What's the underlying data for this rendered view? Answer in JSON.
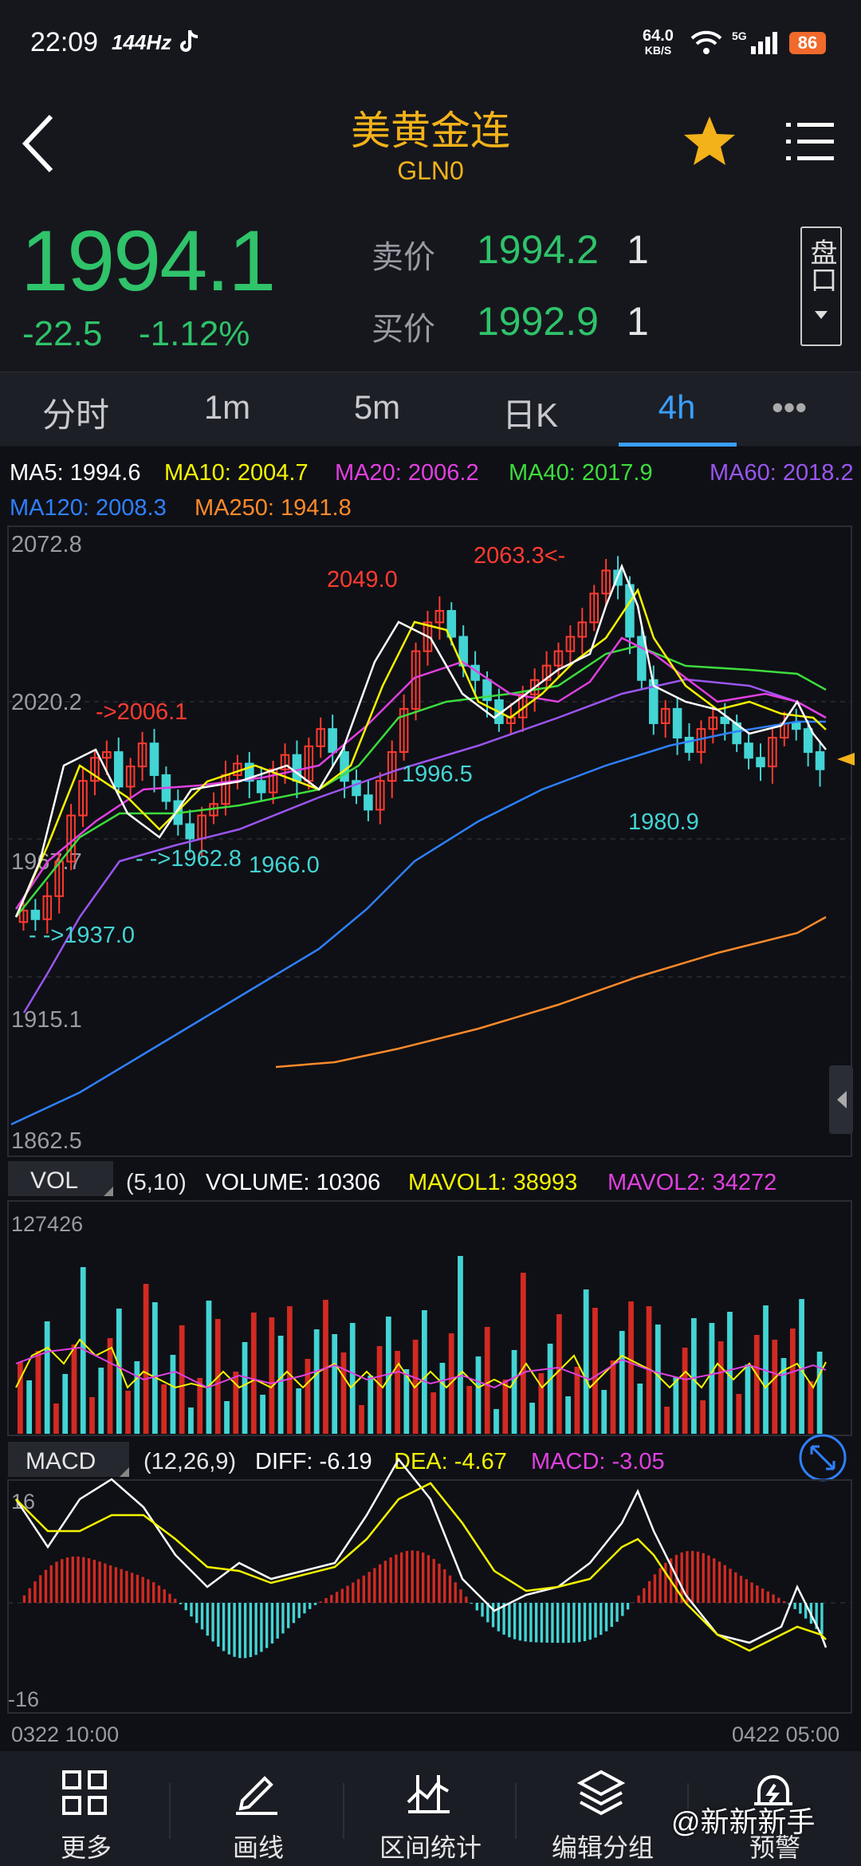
{
  "status_bar": {
    "time": "22:09",
    "refresh": "144Hz",
    "net_speed": "64.0",
    "net_unit": "KB/S",
    "network": "5G",
    "battery": "86"
  },
  "header": {
    "title": "美黄金连",
    "code": "GLN0",
    "back_icon": "chevron-left-icon",
    "favorite_icon": "star-icon",
    "menu_icon": "list-menu-icon"
  },
  "quote": {
    "last": "1994.1",
    "change": "-22.5",
    "change_pct": "-1.12%",
    "ask_label": "卖价",
    "ask": "1994.2",
    "ask_vol": "1",
    "bid_label": "买价",
    "bid": "1992.9",
    "bid_vol": "1",
    "pankou": "盘口"
  },
  "tabs": [
    {
      "label": "分时",
      "active": false
    },
    {
      "label": "1m",
      "active": false
    },
    {
      "label": "5m",
      "active": false
    },
    {
      "label": "日K",
      "active": false
    },
    {
      "label": "4h",
      "active": true
    },
    {
      "label": "•••",
      "active": false
    }
  ],
  "ma_legend": [
    {
      "text": "MA5: 1994.6",
      "color": "#ffffff"
    },
    {
      "text": "MA10: 2004.7",
      "color": "#f5f500"
    },
    {
      "text": "MA20: 2006.2",
      "color": "#e040e0"
    },
    {
      "text": "MA40: 2017.9",
      "color": "#3ddc3d"
    },
    {
      "text": "MA60: 2018.2",
      "color": "#9a55f0"
    },
    {
      "text": "MA120: 2008.3",
      "color": "#2f80ff"
    },
    {
      "text": "MA250: 1941.8",
      "color": "#ff8a2a"
    }
  ],
  "price_axis": [
    "2072.8",
    "2020.2",
    "1967.7",
    "1915.1",
    "1862.5"
  ],
  "annotations": [
    {
      "text": "2049.0",
      "color": "#ff3b30"
    },
    {
      "text": "2063.3<-",
      "color": "#ff3b30"
    },
    {
      "text": "->2006.1",
      "color": "#ff3b30"
    },
    {
      "text": "1996.5",
      "color": "#43d4d4"
    },
    {
      "text": "- ->1962.8",
      "color": "#43d4d4"
    },
    {
      "text": "1966.0",
      "color": "#43d4d4"
    },
    {
      "text": "1980.9",
      "color": "#43d4d4"
    },
    {
      "text": "- ->1937.0",
      "color": "#43d4d4"
    }
  ],
  "volume": {
    "label": "VOL",
    "params": "(5,10)",
    "volume": "VOLUME: 10306",
    "mavol1": "MAVOL1: 38993",
    "mavol2": "MAVOL2: 34272",
    "max": "127426"
  },
  "macd": {
    "label": "MACD",
    "params": "(12,26,9)",
    "diff": "DIFF: -6.19",
    "dea": "DEA: -4.67",
    "macd": "MACD: -3.05",
    "top": "16",
    "bottom": "-16"
  },
  "time_axis": {
    "start": "0322 10:00",
    "end": "0422 05:00"
  },
  "bottom_toolbar": [
    {
      "label": "更多",
      "icon": "grid-icon"
    },
    {
      "label": "画线",
      "icon": "draw-line-icon"
    },
    {
      "label": "区间统计",
      "icon": "range-stats-icon"
    },
    {
      "label": "编辑分组",
      "icon": "layers-icon"
    },
    {
      "label": "预警",
      "icon": "alert-bell-icon"
    }
  ],
  "watermark": "@新新新手",
  "chart_data": {
    "type": "candlestick",
    "y_range": [
      1862.5,
      2072.8
    ],
    "closes": [
      1945,
      1942,
      1950,
      1962,
      1978,
      1990,
      1998,
      2000,
      1988,
      1995,
      2003,
      1992,
      1983,
      1975,
      1970,
      1978,
      1982,
      1992,
      1996,
      1990,
      1986,
      1994,
      1999,
      1990,
      2002,
      2008,
      2000,
      1990,
      1985,
      1980,
      1990,
      2000,
      2015,
      2035,
      2045,
      2049,
      2040,
      2030,
      2025,
      2018,
      2010,
      2012,
      2020,
      2025,
      2030,
      2035,
      2040,
      2045,
      2055,
      2063,
      2058,
      2040,
      2025,
      2010,
      2015,
      2005,
      2000,
      2008,
      2012,
      2010,
      2003,
      1998,
      1995,
      2005,
      2010,
      2008,
      2000,
      1994
    ],
    "ma_series": [
      "MA5",
      "MA10",
      "MA20",
      "MA40",
      "MA60",
      "MA120",
      "MA250"
    ]
  }
}
